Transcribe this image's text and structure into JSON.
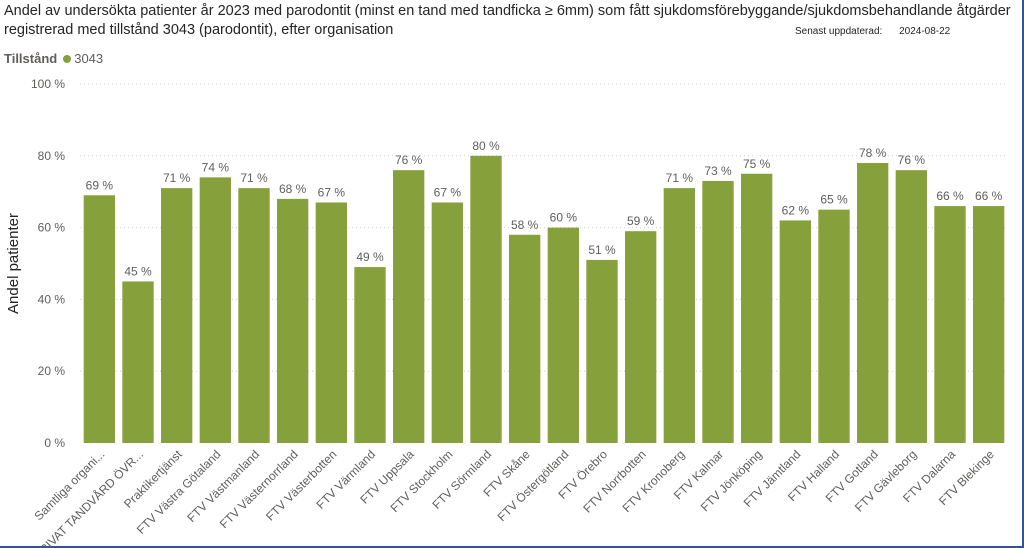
{
  "header": {
    "title": "Andel av undersökta patienter år 2023 med parodontit (minst en tand med tandficka ≥ 6mm) som fått sjukdomsförebyggande/sjukdomsbehandlande åtgärder registrerad med tillstånd 3043 (parodontit), efter organisation",
    "updated_label": "Senast uppdaterad:",
    "updated_date": "2024-08-22"
  },
  "legend": {
    "title": "Tillstånd",
    "items": [
      {
        "label": "3043",
        "color": "#86a03c"
      }
    ]
  },
  "chart_data": {
    "type": "bar",
    "title": "Andel av undersökta patienter år 2023 med parodontit (minst en tand med tandficka ≥ 6mm) som fått sjukdomsförebyggande/sjukdomsbehandlande åtgärder registrerad med tillstånd 3043 (parodontit), efter organisation",
    "xlabel": "",
    "ylabel": "Andel patienter",
    "ylim": [
      0,
      100
    ],
    "yticks": [
      "0 %",
      "20 %",
      "40 %",
      "60 %",
      "80 %",
      "100 %"
    ],
    "bar_color": "#86a03c",
    "grid": true,
    "legend_position": "top-left",
    "categories": [
      "Samtliga organi...",
      "PRIVAT TANDVÅRD ÖVR...",
      "Praktikertjänst",
      "FTV Västra Götaland",
      "FTV Västmanland",
      "FTV Västernorrland",
      "FTV Västerbotten",
      "FTV Värmland",
      "FTV Uppsala",
      "FTV Stockholm",
      "FTV Sörmland",
      "FTV Skåne",
      "FTV Östergötland",
      "FTV Örebro",
      "FTV Norrbotten",
      "FTV Kronoberg",
      "FTV Kalmar",
      "FTV Jönköping",
      "FTV Jämtland",
      "FTV Halland",
      "FTV Gotland",
      "FTV Gävleborg",
      "FTV Dalarna",
      "FTV Blekinge"
    ],
    "series": [
      {
        "name": "3043",
        "values": [
          69,
          45,
          71,
          74,
          71,
          68,
          67,
          49,
          76,
          67,
          80,
          58,
          60,
          51,
          59,
          71,
          73,
          75,
          62,
          65,
          78,
          76,
          66,
          66
        ],
        "labels": [
          "69 %",
          "45 %",
          "71 %",
          "74 %",
          "71 %",
          "68 %",
          "67 %",
          "49 %",
          "76 %",
          "67 %",
          "80 %",
          "58 %",
          "60 %",
          "51 %",
          "59 %",
          "71 %",
          "73 %",
          "75 %",
          "62 %",
          "65 %",
          "78 %",
          "76 %",
          "66 %",
          "66 %"
        ]
      }
    ]
  }
}
